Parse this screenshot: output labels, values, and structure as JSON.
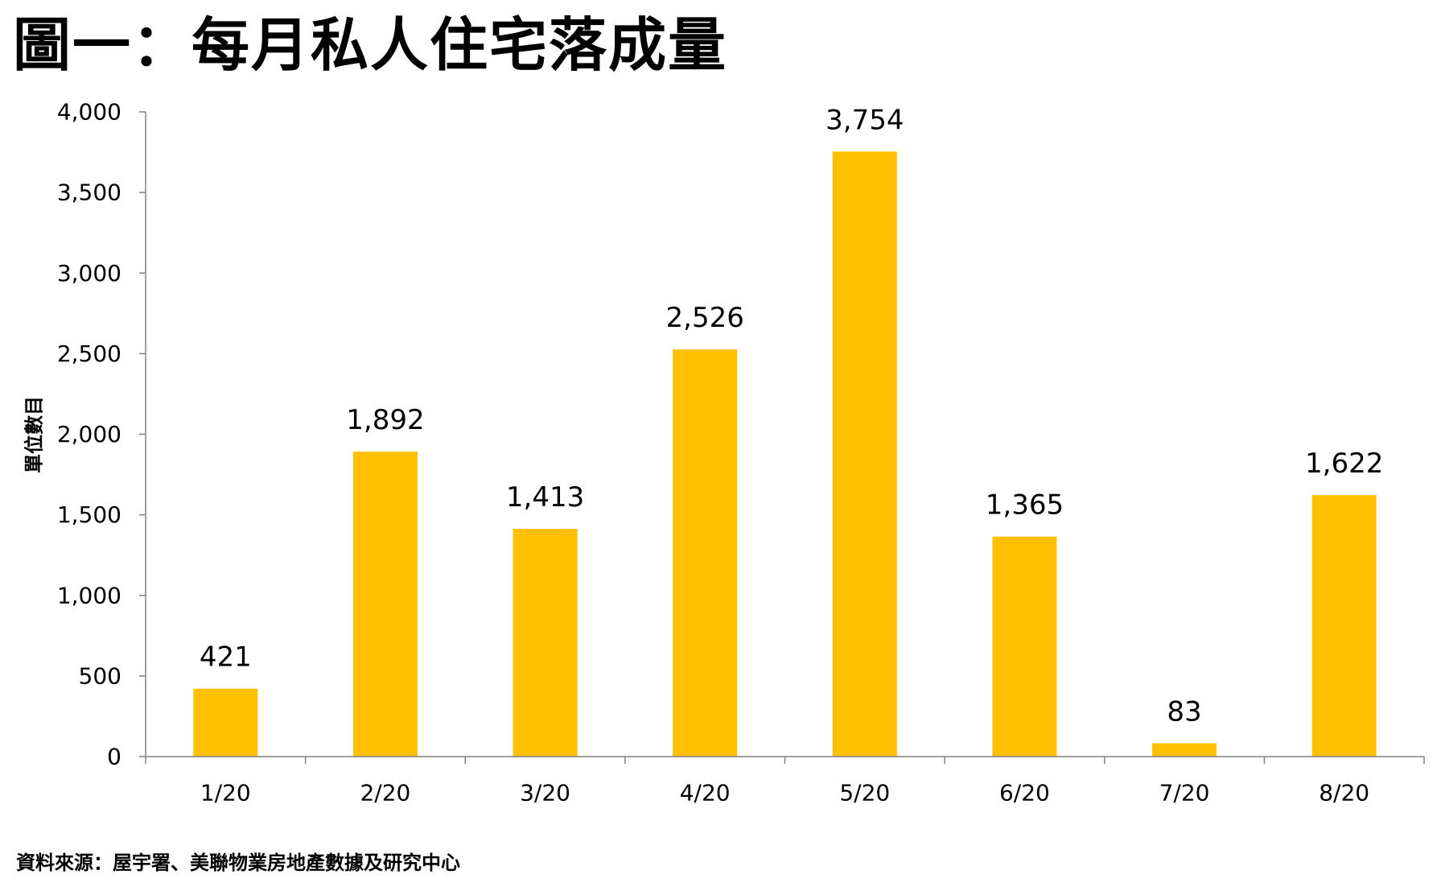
{
  "title": "圖一：每月私人住宅落成量",
  "source": "資料來源：屋宇署、美聯物業房地產數據及研究中心",
  "colors": {
    "bar": "#FFC000",
    "axis": "#808080",
    "text": "#000000"
  },
  "chart_data": {
    "type": "bar",
    "title": "圖一：每月私人住宅落成量",
    "xlabel": "",
    "ylabel": "單位數目",
    "categories": [
      "1/20",
      "2/20",
      "3/20",
      "4/20",
      "5/20",
      "6/20",
      "7/20",
      "8/20"
    ],
    "values": [
      421,
      1892,
      1413,
      2526,
      3754,
      1365,
      83,
      1622
    ],
    "value_labels": [
      "421",
      "1,892",
      "1,413",
      "2,526",
      "3,754",
      "1,365",
      "83",
      "1,622"
    ],
    "ylim": [
      0,
      4000
    ],
    "yticks": [
      0,
      500,
      1000,
      1500,
      2000,
      2500,
      3000,
      3500,
      4000
    ],
    "ytick_labels": [
      "0",
      "500",
      "1,000",
      "1,500",
      "2,000",
      "2,500",
      "3,000",
      "3,500",
      "4,000"
    ],
    "grid": false,
    "legend": "none"
  }
}
